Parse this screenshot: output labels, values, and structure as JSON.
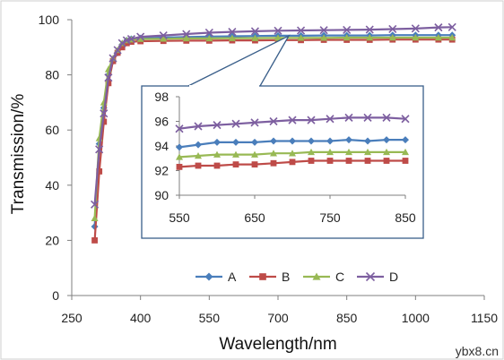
{
  "chart_data": [
    {
      "type": "line",
      "title": "",
      "xlabel": "Wavelength/nm",
      "ylabel": "Transmission/%",
      "xlim": [
        250,
        1150
      ],
      "ylim": [
        0,
        100
      ],
      "xticks": [
        250,
        400,
        550,
        700,
        850,
        1000,
        1150
      ],
      "yticks": [
        0,
        20,
        40,
        60,
        80,
        100
      ],
      "grid": false,
      "legend_position": "bottom",
      "series": [
        {
          "name": "A",
          "color": "#4a7ebb",
          "marker": "diamond",
          "x": [
            300,
            310,
            320,
            330,
            340,
            350,
            360,
            370,
            380,
            400,
            450,
            500,
            550,
            600,
            650,
            700,
            750,
            800,
            850,
            900,
            950,
            1000,
            1050,
            1080
          ],
          "y": [
            25,
            55,
            68,
            80,
            85,
            88,
            91,
            92.5,
            93,
            93.3,
            93.5,
            93.7,
            93.9,
            94.0,
            94.1,
            94.2,
            94.2,
            94.3,
            94.3,
            94.3,
            94.4,
            94.4,
            94.4,
            94.4
          ]
        },
        {
          "name": "B",
          "color": "#be4b48",
          "marker": "square",
          "x": [
            300,
            310,
            320,
            330,
            340,
            350,
            360,
            370,
            380,
            400,
            450,
            500,
            550,
            600,
            650,
            700,
            750,
            800,
            850,
            900,
            950,
            1000,
            1050,
            1080
          ],
          "y": [
            20,
            45,
            63,
            77,
            85,
            88,
            90,
            91.5,
            92,
            92.2,
            92.3,
            92.4,
            92.4,
            92.5,
            92.5,
            92.6,
            92.6,
            92.7,
            92.7,
            92.7,
            92.8,
            92.8,
            92.8,
            92.8
          ]
        },
        {
          "name": "C",
          "color": "#98b954",
          "marker": "triangle",
          "x": [
            300,
            310,
            320,
            330,
            340,
            350,
            360,
            370,
            380,
            400,
            450,
            500,
            550,
            600,
            650,
            700,
            750,
            800,
            850,
            900,
            950,
            1000,
            1050,
            1080
          ],
          "y": [
            28,
            57,
            70,
            82,
            86,
            89,
            91.5,
            92.5,
            92.8,
            93.0,
            93.1,
            93.2,
            93.2,
            93.3,
            93.3,
            93.4,
            93.4,
            93.4,
            93.5,
            93.5,
            93.5,
            93.5,
            93.5,
            93.5
          ]
        },
        {
          "name": "D",
          "color": "#7d5fa0",
          "marker": "x",
          "x": [
            300,
            310,
            320,
            330,
            340,
            350,
            360,
            370,
            380,
            400,
            450,
            500,
            550,
            600,
            650,
            700,
            750,
            800,
            850,
            900,
            950,
            1000,
            1050,
            1080
          ],
          "y": [
            33,
            53,
            66,
            79,
            86,
            89,
            91.5,
            92.5,
            93,
            93.8,
            94.3,
            94.8,
            95.3,
            95.6,
            95.8,
            96.0,
            96.1,
            96.2,
            96.3,
            96.4,
            96.6,
            96.8,
            97.2,
            97.3
          ]
        }
      ]
    },
    {
      "type": "line",
      "title": "",
      "xlabel": "",
      "ylabel": "",
      "xlim": [
        550,
        850
      ],
      "ylim": [
        90,
        98
      ],
      "xticks": [
        550,
        650,
        750,
        850
      ],
      "yticks": [
        90,
        92,
        94,
        96,
        98
      ],
      "grid": false,
      "series": [
        {
          "name": "A",
          "color": "#4a7ebb",
          "marker": "diamond",
          "x": [
            550,
            575,
            600,
            625,
            650,
            675,
            700,
            725,
            750,
            775,
            800,
            825,
            850
          ],
          "y": [
            93.9,
            94.1,
            94.3,
            94.3,
            94.3,
            94.4,
            94.4,
            94.4,
            94.4,
            94.5,
            94.4,
            94.5,
            94.5
          ]
        },
        {
          "name": "B",
          "color": "#be4b48",
          "marker": "square",
          "x": [
            550,
            575,
            600,
            625,
            650,
            675,
            700,
            725,
            750,
            775,
            800,
            825,
            850
          ],
          "y": [
            92.3,
            92.4,
            92.4,
            92.5,
            92.5,
            92.6,
            92.7,
            92.8,
            92.8,
            92.8,
            92.8,
            92.8,
            92.8
          ]
        },
        {
          "name": "C",
          "color": "#98b954",
          "marker": "triangle",
          "x": [
            550,
            575,
            600,
            625,
            650,
            675,
            700,
            725,
            750,
            775,
            800,
            825,
            850
          ],
          "y": [
            93.1,
            93.2,
            93.3,
            93.3,
            93.3,
            93.4,
            93.4,
            93.5,
            93.5,
            93.5,
            93.5,
            93.5,
            93.5
          ]
        },
        {
          "name": "D",
          "color": "#7d5fa0",
          "marker": "x",
          "x": [
            550,
            575,
            600,
            625,
            650,
            675,
            700,
            725,
            750,
            775,
            800,
            825,
            850
          ],
          "y": [
            95.4,
            95.6,
            95.7,
            95.8,
            95.9,
            96.0,
            96.1,
            96.1,
            96.2,
            96.3,
            96.3,
            96.3,
            96.2
          ]
        }
      ]
    }
  ],
  "watermark": "ybx8.cn"
}
